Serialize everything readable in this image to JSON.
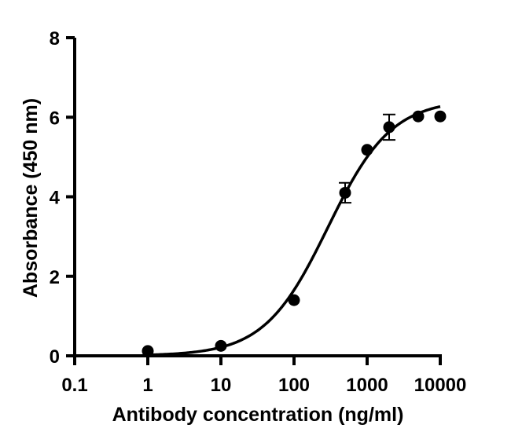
{
  "chart_data": {
    "type": "scatter",
    "title": "",
    "xlabel": "Antibody concentration (ng/ml)",
    "ylabel": "Absorbance (450 nm)",
    "x_scale": "log",
    "xlim": [
      0.1,
      10000
    ],
    "ylim": [
      0,
      8
    ],
    "x_ticks": [
      0.1,
      1,
      10,
      100,
      1000,
      10000
    ],
    "x_tick_labels": [
      "0.1",
      "1",
      "10",
      "100",
      "1000",
      "10000"
    ],
    "y_ticks": [
      0,
      2,
      4,
      6,
      8
    ],
    "y_tick_labels": [
      "0",
      "2",
      "4",
      "6",
      "8"
    ],
    "grid": false,
    "legend": "none",
    "marker_color": "#000000",
    "line_color": "#000000",
    "series": [
      {
        "x": [
          1,
          10,
          100,
          500,
          1000,
          2000,
          5000,
          10000
        ],
        "y": [
          0.12,
          0.25,
          1.4,
          4.1,
          5.18,
          5.75,
          6.02,
          6.02
        ],
        "error": [
          0,
          0,
          0,
          0.25,
          0,
          0.32,
          0,
          0
        ]
      }
    ],
    "fit_curve": {
      "model": "4PL",
      "bottom": 0,
      "top": 6.45,
      "ec50": 290,
      "hill": 1.0
    }
  }
}
